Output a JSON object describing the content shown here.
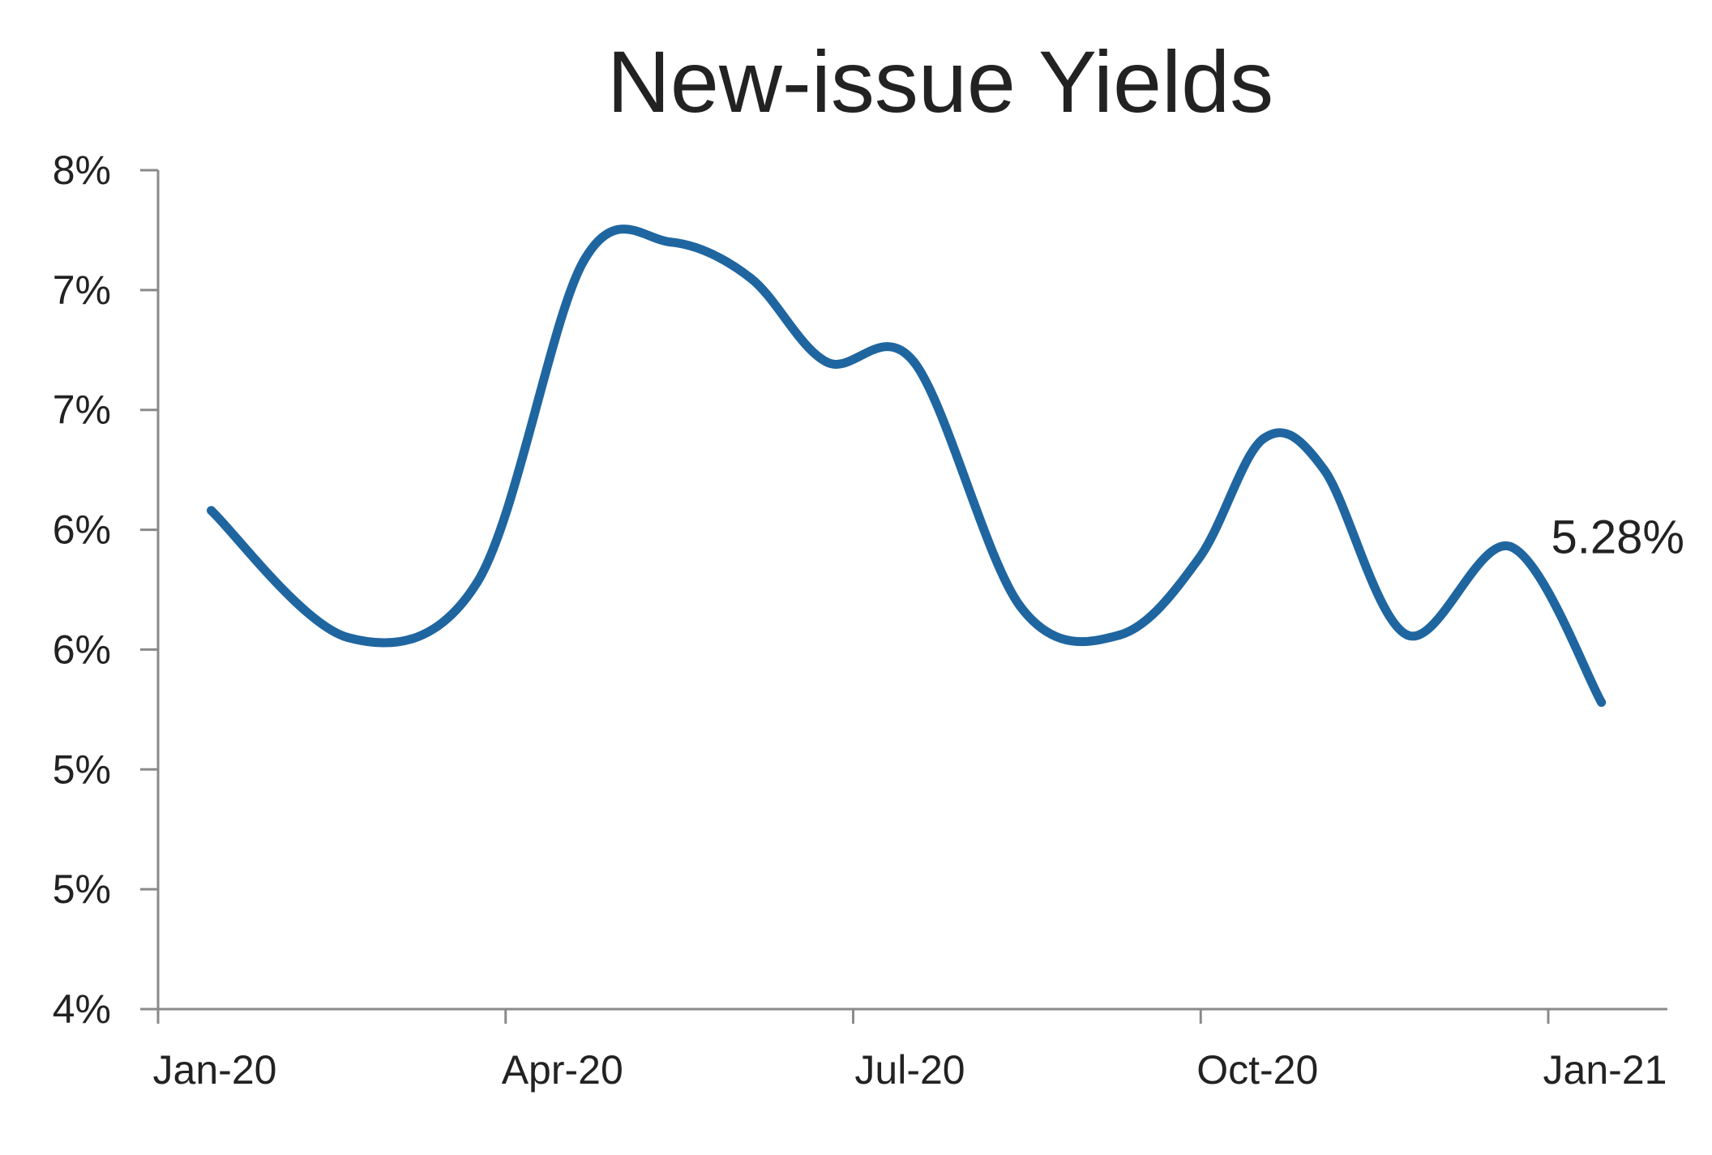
{
  "chart_data": {
    "type": "line",
    "title": "New-issue Yields",
    "xlabel": "",
    "ylabel": "",
    "x_ticks": [
      "Jan-20",
      "Apr-20",
      "Jul-20",
      "Oct-20",
      "Jan-21"
    ],
    "y_ticks": [
      "8%",
      "7%",
      "7%",
      "6%",
      "6%",
      "5%",
      "5%",
      "4%"
    ],
    "ylim": [
      4.0,
      7.5
    ],
    "grid": false,
    "legend": "none",
    "series": [
      {
        "color": "#1F66A0",
        "points": [
          {
            "x": "2020-01-15",
            "y": 6.08
          },
          {
            "x": "2020-02-20",
            "y": 5.55
          },
          {
            "x": "2020-03-25",
            "y": 5.78
          },
          {
            "x": "2020-04-22",
            "y": 7.12
          },
          {
            "x": "2020-05-15",
            "y": 7.2
          },
          {
            "x": "2020-06-05",
            "y": 7.05
          },
          {
            "x": "2020-06-25",
            "y": 6.7
          },
          {
            "x": "2020-07-18",
            "y": 6.7
          },
          {
            "x": "2020-08-15",
            "y": 5.68
          },
          {
            "x": "2020-09-10",
            "y": 5.56
          },
          {
            "x": "2020-10-01",
            "y": 5.88
          },
          {
            "x": "2020-10-18",
            "y": 6.38
          },
          {
            "x": "2020-11-03",
            "y": 6.25
          },
          {
            "x": "2020-11-25",
            "y": 5.56
          },
          {
            "x": "2020-12-22",
            "y": 5.93
          },
          {
            "x": "2021-01-15",
            "y": 5.28
          }
        ]
      }
    ],
    "annotations": [
      {
        "text": "5.28%",
        "x": "2021-01-15",
        "y": 5.28
      }
    ]
  }
}
